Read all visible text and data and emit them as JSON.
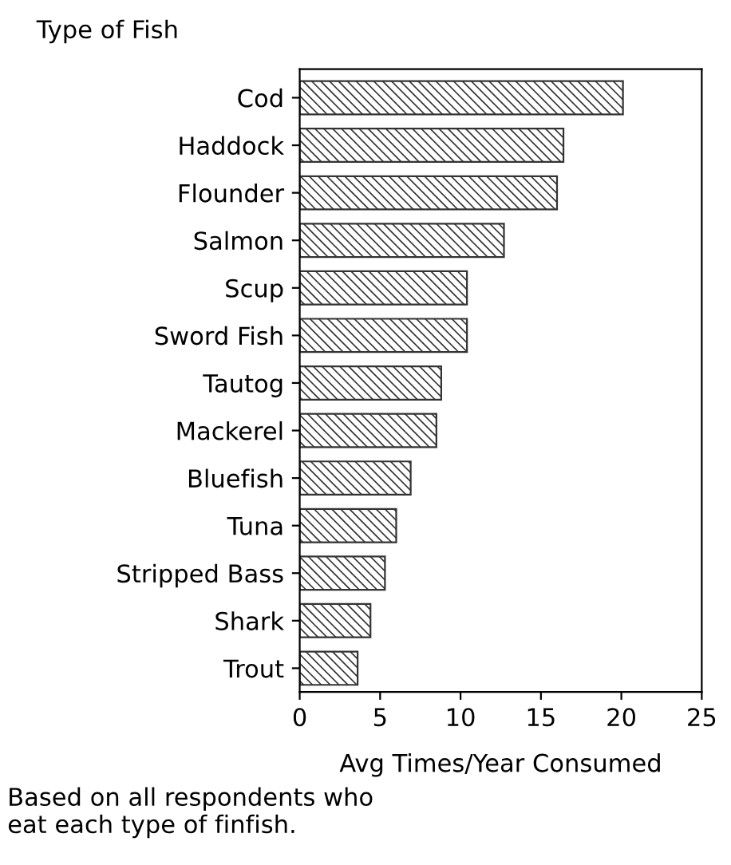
{
  "chart_data": {
    "type": "bar",
    "orientation": "horizontal",
    "ylabel": "Type of Fish",
    "xlabel": "Avg Times/Year Consumed",
    "categories": [
      "Cod",
      "Haddock",
      "Flounder",
      "Salmon",
      "Scup",
      "Sword Fish",
      "Tautog",
      "Mackerel",
      "Bluefish",
      "Tuna",
      "Stripped Bass",
      "Shark",
      "Trout"
    ],
    "values": [
      20.1,
      16.4,
      16.0,
      12.7,
      10.4,
      10.4,
      8.8,
      8.5,
      6.9,
      6.0,
      5.3,
      4.4,
      3.6
    ],
    "color": "#333333",
    "xlim": [
      0,
      25
    ],
    "xticks": [
      0,
      5,
      10,
      15,
      20,
      25
    ],
    "grid": false,
    "annotations": [
      "Based on all respondents who\neat each type of finfish."
    ]
  }
}
